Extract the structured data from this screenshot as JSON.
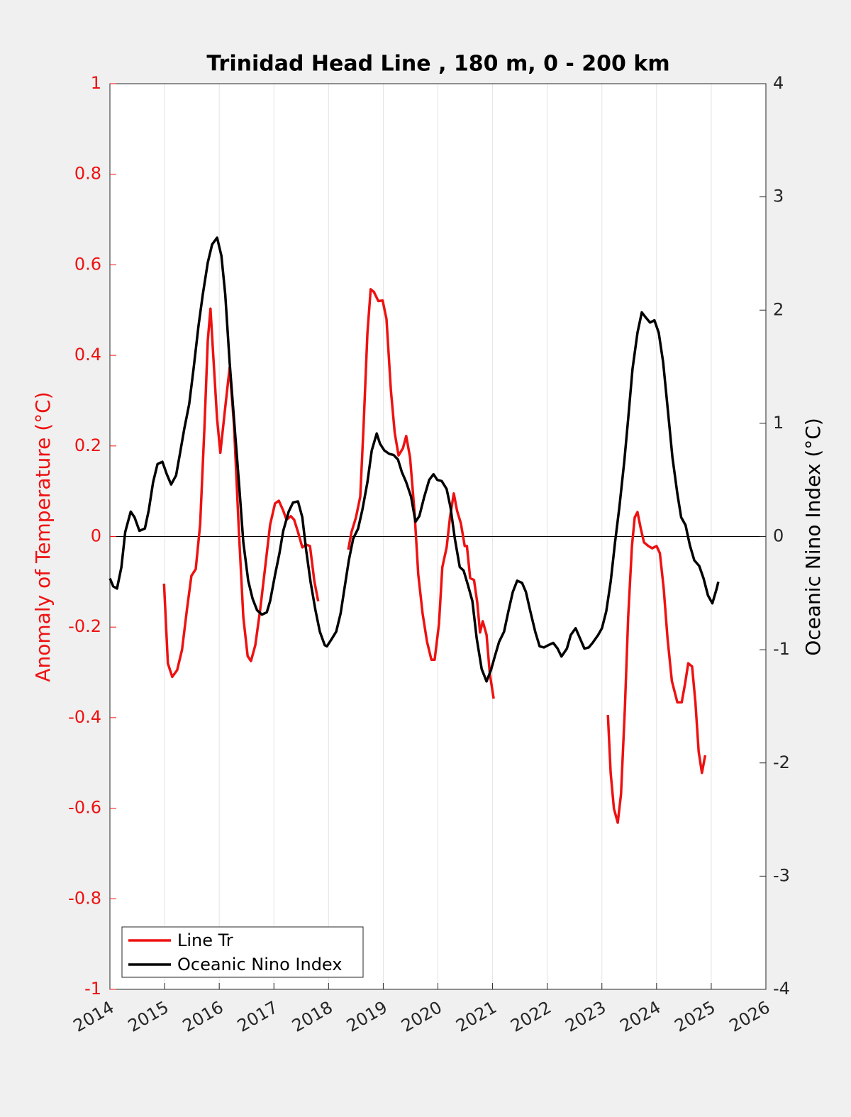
{
  "chart_data": {
    "type": "line",
    "title": "Trinidad Head Line , 180 m, 0 - 200 km",
    "ylabel": "Anomaly of Temperature (°C)",
    "y2label": "Oceanic Nino Index (°C)",
    "xlim": [
      2014,
      2026
    ],
    "xticks": [
      2014,
      2015,
      2016,
      2017,
      2018,
      2019,
      2020,
      2021,
      2022,
      2023,
      2024,
      2025,
      2026
    ],
    "ylim": [
      -1,
      1
    ],
    "yticks": [
      -1,
      -0.8,
      -0.6,
      -0.4,
      -0.2,
      0,
      0.2,
      0.4,
      0.6,
      0.8,
      1
    ],
    "y2lim": [
      -4,
      4
    ],
    "y2ticks": [
      -4,
      -3,
      -2,
      -1,
      0,
      1,
      2,
      3,
      4
    ],
    "hline": 0,
    "grid": true,
    "legend": "lower left",
    "series": [
      {
        "name": "Line Tr",
        "color": "#ee1111",
        "axis": "y",
        "x": [
          2014.99,
          2015.06,
          2015.14,
          2015.23,
          2015.32,
          2015.41,
          2015.49,
          2015.57,
          2015.65,
          2015.73,
          2015.79,
          2015.84,
          2015.89,
          2015.96,
          2016.02,
          2016.1,
          2016.19,
          2016.27,
          2016.36,
          2016.44,
          2016.52,
          2016.58,
          2016.66,
          2016.75,
          2016.84,
          2016.93,
          2017.02,
          2017.09,
          2017.17,
          2017.23,
          2017.31,
          2017.37,
          2017.44,
          2017.52,
          2017.59,
          2017.66,
          2017.74,
          2017.81,
          null,
          2018.36,
          2018.42,
          2018.5,
          2018.58,
          2018.64,
          2018.71,
          2018.77,
          2018.83,
          2018.91,
          2018.99,
          2019.06,
          2019.14,
          2019.21,
          2019.28,
          2019.36,
          2019.42,
          2019.49,
          2019.57,
          2019.64,
          2019.72,
          2019.8,
          2019.88,
          2019.94,
          2020.02,
          2020.08,
          2020.16,
          2020.22,
          2020.29,
          2020.35,
          2020.42,
          2020.49,
          2020.53,
          2020.59,
          2020.66,
          2020.72,
          2020.77,
          2020.82,
          2020.89,
          2020.95,
          2021.02,
          null,
          2023.11,
          2023.16,
          2023.22,
          2023.29,
          2023.35,
          2023.42,
          2023.48,
          2023.55,
          2023.6,
          2023.65,
          2023.71,
          2023.77,
          2023.85,
          2023.92,
          2024.0,
          2024.06,
          2024.13,
          2024.2,
          2024.28,
          2024.38,
          2024.46,
          2024.52,
          2024.58,
          2024.65,
          2024.71,
          2024.77,
          2024.83,
          2024.89
        ],
        "values": [
          -0.104,
          -0.28,
          -0.31,
          -0.295,
          -0.25,
          -0.16,
          -0.087,
          -0.072,
          0.026,
          0.245,
          0.433,
          0.503,
          0.4,
          0.26,
          0.185,
          0.275,
          0.373,
          0.245,
          0.01,
          -0.178,
          -0.264,
          -0.275,
          -0.24,
          -0.16,
          -0.068,
          0.026,
          0.073,
          0.079,
          0.057,
          0.037,
          0.045,
          0.037,
          0.01,
          -0.024,
          -0.018,
          -0.021,
          -0.099,
          -0.143,
          null,
          -0.029,
          0.01,
          0.042,
          0.088,
          0.245,
          0.449,
          0.546,
          0.54,
          0.52,
          0.521,
          0.48,
          0.323,
          0.229,
          0.179,
          0.195,
          0.222,
          0.175,
          0.057,
          -0.084,
          -0.17,
          -0.232,
          -0.272,
          -0.272,
          -0.193,
          -0.068,
          -0.024,
          0.042,
          0.095,
          0.057,
          0.029,
          -0.021,
          -0.021,
          -0.092,
          -0.096,
          -0.146,
          -0.212,
          -0.187,
          -0.217,
          -0.303,
          -0.358,
          null,
          -0.394,
          -0.522,
          -0.601,
          -0.632,
          -0.569,
          -0.381,
          -0.178,
          -0.021,
          0.042,
          0.054,
          0.018,
          -0.013,
          -0.021,
          -0.026,
          -0.021,
          -0.037,
          -0.115,
          -0.225,
          -0.319,
          -0.366,
          -0.366,
          -0.326,
          -0.28,
          -0.287,
          -0.366,
          -0.475,
          -0.522,
          -0.483
        ]
      },
      {
        "name": "Oceanic Nino Index",
        "color": "#000000",
        "axis": "y2",
        "x": [
          2014.0,
          2014.06,
          2014.13,
          2014.21,
          2014.28,
          2014.38,
          2014.45,
          2014.54,
          2014.64,
          2014.71,
          2014.79,
          2014.87,
          2014.96,
          2015.04,
          2015.12,
          2015.21,
          2015.28,
          2015.36,
          2015.45,
          2015.53,
          2015.62,
          2015.7,
          2015.79,
          2015.87,
          2015.96,
          2016.04,
          2016.11,
          2016.19,
          2016.28,
          2016.36,
          2016.44,
          2016.53,
          2016.61,
          2016.69,
          2016.78,
          2016.87,
          2016.93,
          2017.02,
          2017.1,
          2017.17,
          2017.27,
          2017.35,
          2017.44,
          2017.52,
          2017.59,
          2017.67,
          2017.76,
          2017.84,
          2017.93,
          2017.97,
          2018.05,
          2018.14,
          2018.22,
          2018.29,
          2018.37,
          2018.45,
          2018.54,
          2018.62,
          2018.71,
          2018.79,
          2018.88,
          2018.94,
          2019.02,
          2019.11,
          2019.19,
          2019.27,
          2019.34,
          2019.42,
          2019.51,
          2019.59,
          2019.66,
          2019.75,
          2019.84,
          2019.92,
          2019.99,
          2020.07,
          2020.16,
          2020.23,
          2020.31,
          2020.4,
          2020.47,
          2020.55,
          2020.63,
          2020.71,
          2020.8,
          2020.89,
          2020.97,
          2021.04,
          2021.12,
          2021.21,
          2021.29,
          2021.37,
          2021.45,
          2021.54,
          2021.61,
          2021.69,
          2021.78,
          2021.86,
          2021.94,
          2022.02,
          2022.11,
          2022.19,
          2022.26,
          2022.36,
          2022.43,
          2022.52,
          2022.6,
          2022.68,
          2022.76,
          2022.83,
          2022.93,
          2023.0,
          2023.08,
          2023.16,
          2023.24,
          2023.32,
          2023.41,
          2023.48,
          2023.56,
          2023.65,
          2023.73,
          2023.81,
          2023.88,
          2023.96,
          2024.04,
          2024.12,
          2024.21,
          2024.29,
          2024.38,
          2024.45,
          2024.53,
          2024.61,
          2024.69,
          2024.78,
          2024.86,
          2024.94,
          2025.02,
          2025.1,
          2025.13
        ],
        "values": [
          -0.37,
          -0.44,
          -0.46,
          -0.27,
          0.04,
          0.22,
          0.17,
          0.05,
          0.07,
          0.23,
          0.48,
          0.64,
          0.66,
          0.55,
          0.46,
          0.54,
          0.73,
          0.95,
          1.17,
          1.48,
          1.86,
          2.14,
          2.42,
          2.58,
          2.64,
          2.48,
          2.14,
          1.54,
          0.98,
          0.48,
          -0.05,
          -0.39,
          -0.55,
          -0.65,
          -0.69,
          -0.67,
          -0.57,
          -0.34,
          -0.15,
          0.05,
          0.22,
          0.3,
          0.31,
          0.17,
          -0.12,
          -0.4,
          -0.65,
          -0.84,
          -0.96,
          -0.97,
          -0.91,
          -0.84,
          -0.68,
          -0.46,
          -0.21,
          -0.02,
          0.07,
          0.24,
          0.48,
          0.76,
          0.91,
          0.82,
          0.76,
          0.73,
          0.72,
          0.68,
          0.57,
          0.48,
          0.35,
          0.13,
          0.18,
          0.35,
          0.5,
          0.55,
          0.5,
          0.49,
          0.42,
          0.26,
          -0.02,
          -0.27,
          -0.3,
          -0.43,
          -0.57,
          -0.9,
          -1.17,
          -1.28,
          -1.18,
          -1.06,
          -0.93,
          -0.84,
          -0.66,
          -0.49,
          -0.39,
          -0.41,
          -0.49,
          -0.66,
          -0.84,
          -0.97,
          -0.98,
          -0.96,
          -0.94,
          -0.99,
          -1.06,
          -0.99,
          -0.87,
          -0.81,
          -0.9,
          -0.99,
          -0.98,
          -0.94,
          -0.87,
          -0.81,
          -0.66,
          -0.4,
          -0.05,
          0.26,
          0.67,
          1.04,
          1.48,
          1.8,
          1.98,
          1.93,
          1.89,
          1.91,
          1.8,
          1.54,
          1.1,
          0.7,
          0.38,
          0.17,
          0.1,
          -0.08,
          -0.21,
          -0.26,
          -0.37,
          -0.52,
          -0.59,
          -0.46,
          -0.4
        ]
      }
    ]
  }
}
